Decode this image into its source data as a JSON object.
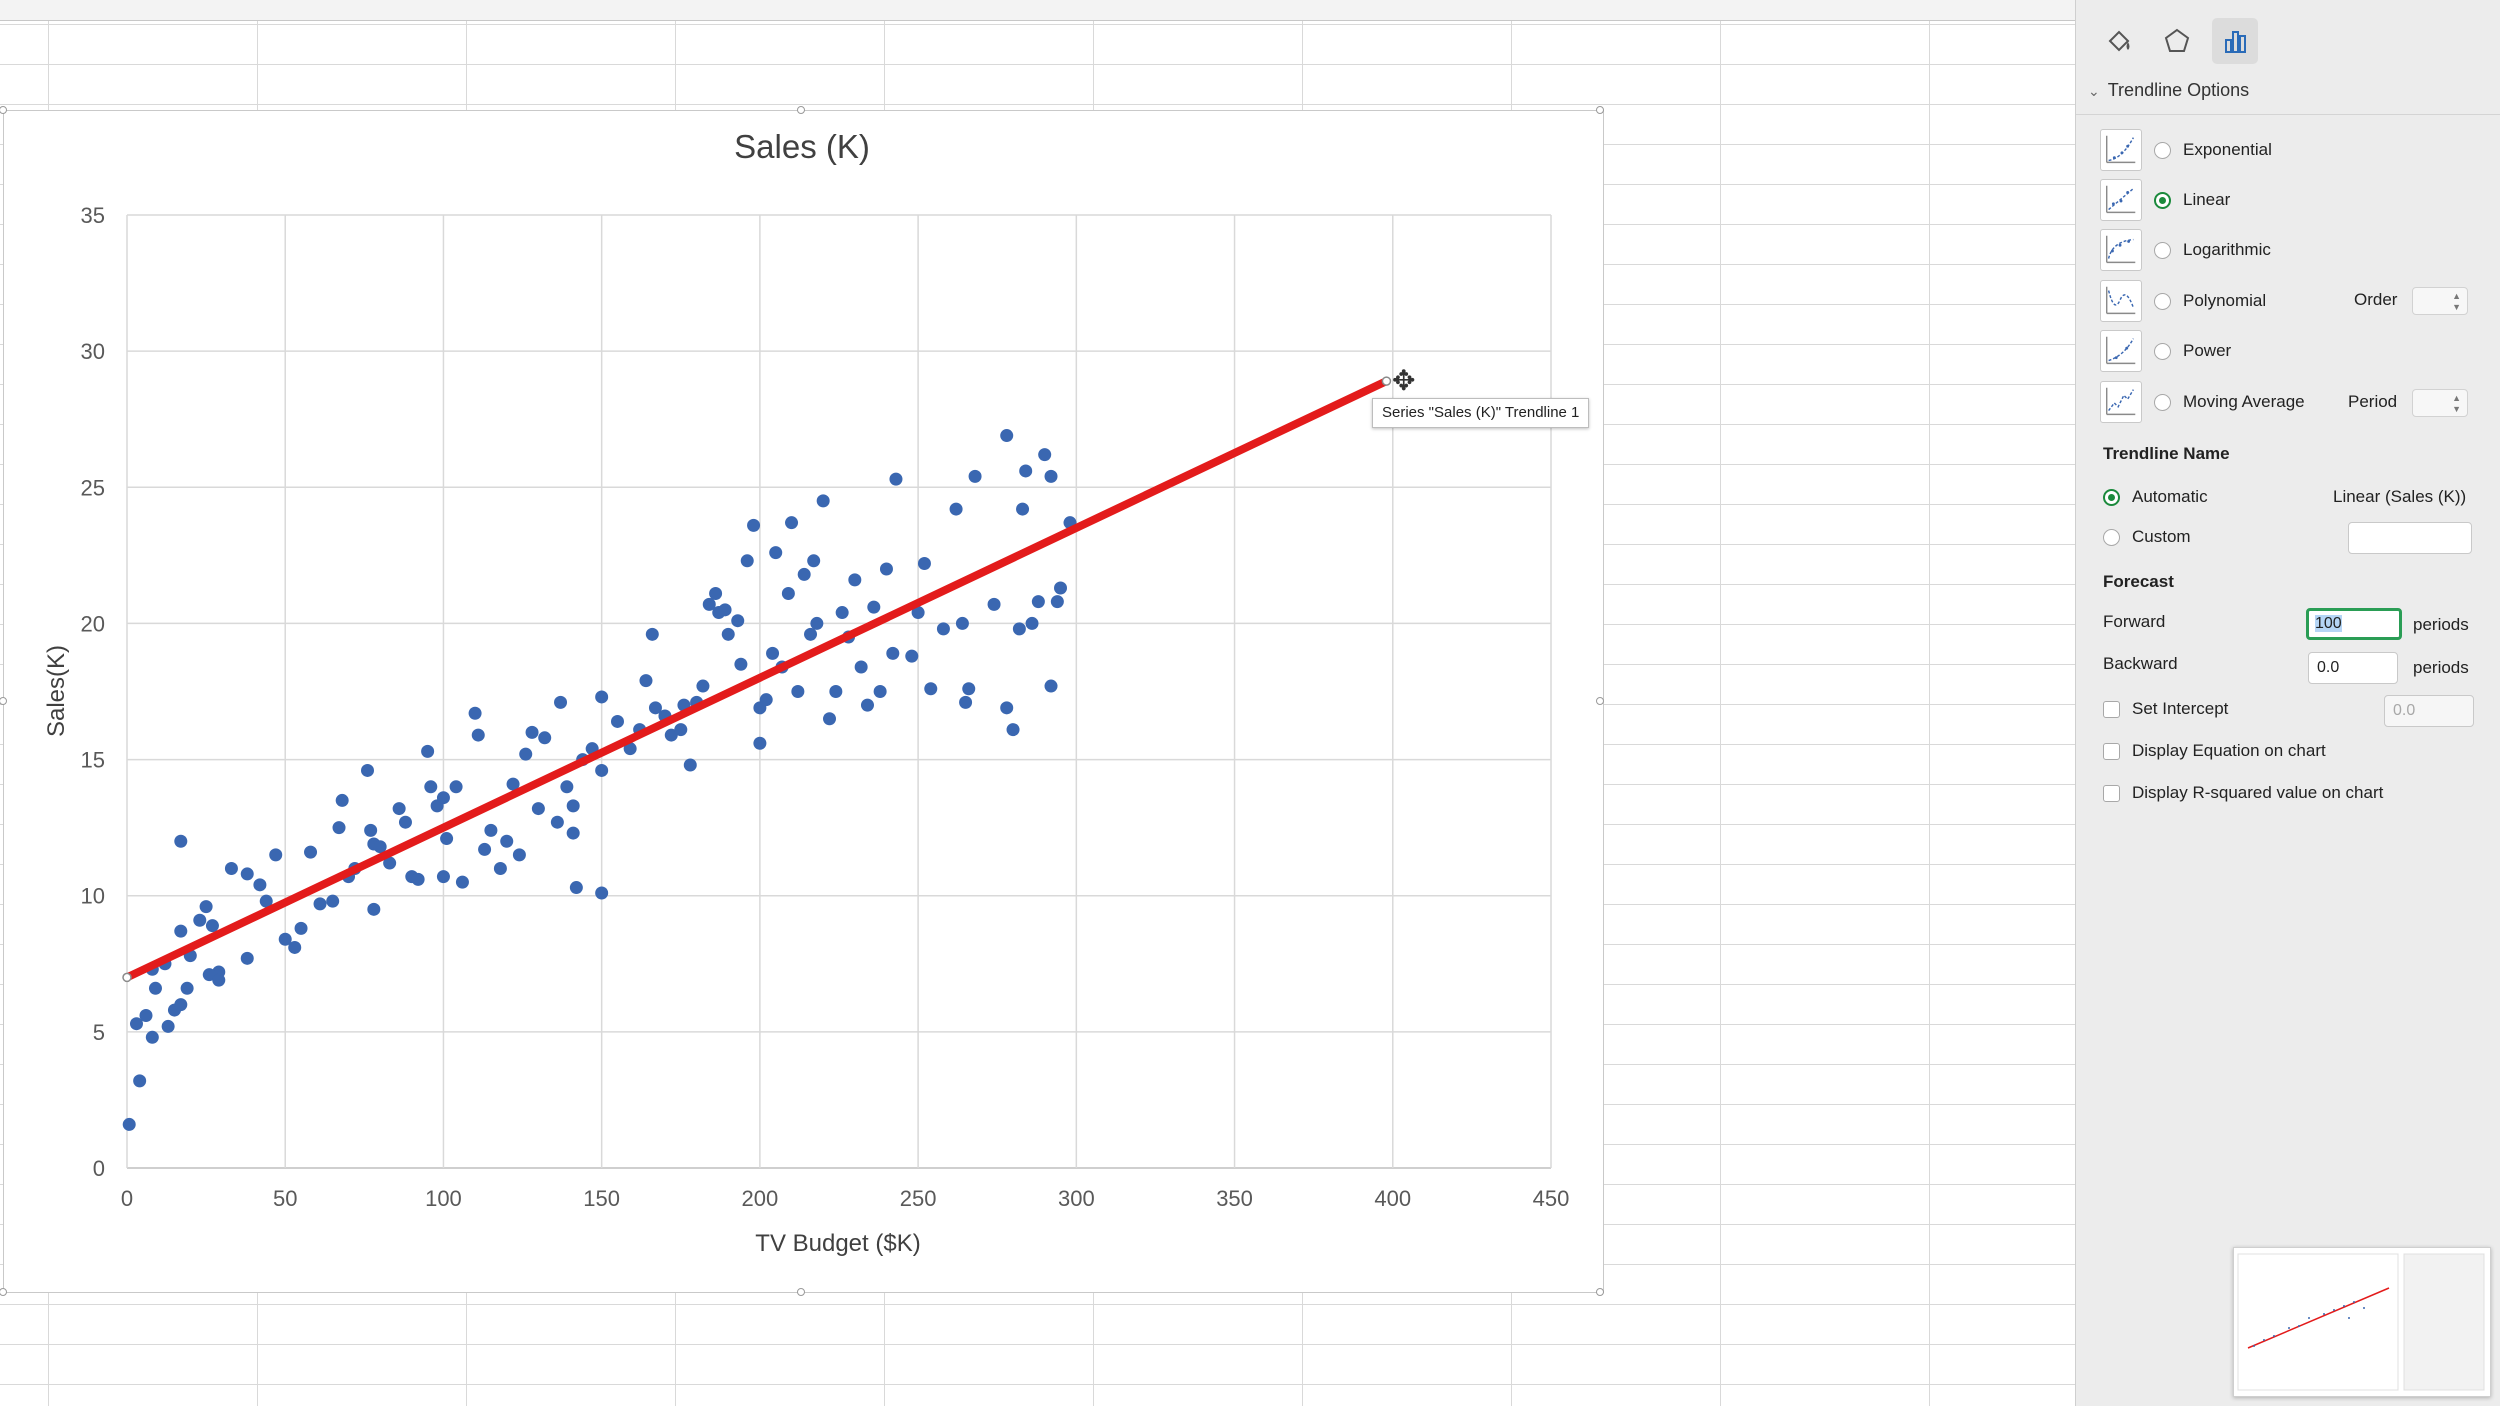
{
  "chart": {
    "title": "Sales (K)",
    "xlabel": "TV Budget ($K)",
    "ylabel": "Sales(K)",
    "tooltip": "Series \"Sales (K)\" Trendline 1"
  },
  "chart_data": {
    "type": "scatter",
    "title": "Sales (K)",
    "xlabel": "TV Budget ($K)",
    "ylabel": "Sales(K)",
    "xlim": [
      0,
      450
    ],
    "ylim": [
      0,
      35
    ],
    "xticks": [
      0,
      50,
      100,
      150,
      200,
      250,
      300,
      350,
      400,
      450
    ],
    "yticks": [
      0,
      5,
      10,
      15,
      20,
      25,
      30,
      35
    ],
    "grid": true,
    "legend": "none",
    "series": [
      {
        "name": "Sales (K)",
        "color": "#3a67b1",
        "points": [
          [
            0.7,
            1.6
          ],
          [
            4,
            3.2
          ],
          [
            3,
            5.3
          ],
          [
            6,
            5.6
          ],
          [
            8,
            4.8
          ],
          [
            9,
            6.6
          ],
          [
            13,
            5.2
          ],
          [
            15,
            5.8
          ],
          [
            17,
            6
          ],
          [
            19,
            6.6
          ],
          [
            8,
            7.3
          ],
          [
            12,
            7.5
          ],
          [
            17,
            8.7
          ],
          [
            20,
            7.8
          ],
          [
            23,
            9.1
          ],
          [
            25,
            9.6
          ],
          [
            27,
            8.9
          ],
          [
            29,
            7.2
          ],
          [
            26,
            7.1
          ],
          [
            29,
            6.9
          ],
          [
            17,
            12
          ],
          [
            33,
            11
          ],
          [
            38,
            10.8
          ],
          [
            38,
            7.7
          ],
          [
            42,
            10.4
          ],
          [
            44,
            9.8
          ],
          [
            47,
            11.5
          ],
          [
            50,
            8.4
          ],
          [
            53,
            8.1
          ],
          [
            55,
            8.8
          ],
          [
            58,
            11.6
          ],
          [
            61,
            9.7
          ],
          [
            65,
            9.8
          ],
          [
            67,
            12.5
          ],
          [
            68,
            13.5
          ],
          [
            70,
            10.7
          ],
          [
            72,
            11
          ],
          [
            76,
            14.6
          ],
          [
            77,
            12.4
          ],
          [
            78,
            11.9
          ],
          [
            80,
            11.8
          ],
          [
            78,
            9.5
          ],
          [
            83,
            11.2
          ],
          [
            86,
            13.2
          ],
          [
            88,
            12.7
          ],
          [
            90,
            10.7
          ],
          [
            92,
            10.6
          ],
          [
            95,
            15.3
          ],
          [
            96,
            14
          ],
          [
            98,
            13.3
          ],
          [
            100,
            13.6
          ],
          [
            101,
            12.1
          ],
          [
            104,
            14
          ],
          [
            100,
            10.7
          ],
          [
            106,
            10.5
          ],
          [
            110,
            16.7
          ],
          [
            111,
            15.9
          ],
          [
            113,
            11.7
          ],
          [
            115,
            12.4
          ],
          [
            118,
            11
          ],
          [
            120,
            12
          ],
          [
            122,
            14.1
          ],
          [
            124,
            11.5
          ],
          [
            126,
            15.2
          ],
          [
            128,
            16
          ],
          [
            130,
            13.2
          ],
          [
            132,
            15.8
          ],
          [
            136,
            12.7
          ],
          [
            137,
            17.1
          ],
          [
            139,
            14
          ],
          [
            141,
            13.3
          ],
          [
            142,
            10.3
          ],
          [
            144,
            15
          ],
          [
            147,
            15.4
          ],
          [
            141,
            12.3
          ],
          [
            150,
            14.6
          ],
          [
            150,
            10.1
          ],
          [
            150,
            17.3
          ],
          [
            155,
            16.4
          ],
          [
            159,
            15.4
          ],
          [
            162,
            16.1
          ],
          [
            164,
            17.9
          ],
          [
            166,
            19.6
          ],
          [
            167,
            16.9
          ],
          [
            170,
            16.6
          ],
          [
            172,
            15.9
          ],
          [
            175,
            16.1
          ],
          [
            176,
            17
          ],
          [
            178,
            14.8
          ],
          [
            180,
            17.1
          ],
          [
            182,
            17.7
          ],
          [
            184,
            20.7
          ],
          [
            186,
            21.1
          ],
          [
            187,
            20.4
          ],
          [
            189,
            20.5
          ],
          [
            190,
            19.6
          ],
          [
            193,
            20.1
          ],
          [
            194,
            18.5
          ],
          [
            196,
            22.3
          ],
          [
            198,
            23.6
          ],
          [
            200,
            15.6
          ],
          [
            200,
            16.9
          ],
          [
            202,
            17.2
          ],
          [
            204,
            18.9
          ],
          [
            205,
            22.6
          ],
          [
            207,
            18.4
          ],
          [
            209,
            21.1
          ],
          [
            210,
            23.7
          ],
          [
            212,
            17.5
          ],
          [
            214,
            21.8
          ],
          [
            216,
            19.6
          ],
          [
            217,
            22.3
          ],
          [
            218,
            20
          ],
          [
            220,
            24.5
          ],
          [
            222,
            16.5
          ],
          [
            224,
            17.5
          ],
          [
            226,
            20.4
          ],
          [
            228,
            19.5
          ],
          [
            230,
            21.6
          ],
          [
            232,
            18.4
          ],
          [
            234,
            17
          ],
          [
            236,
            20.6
          ],
          [
            238,
            17.5
          ],
          [
            240,
            22
          ],
          [
            242,
            18.9
          ],
          [
            243,
            25.3
          ],
          [
            248,
            18.8
          ],
          [
            250,
            20.4
          ],
          [
            252,
            22.2
          ],
          [
            254,
            17.6
          ],
          [
            258,
            19.8
          ],
          [
            262,
            24.2
          ],
          [
            264,
            20
          ],
          [
            265,
            17.1
          ],
          [
            266,
            17.6
          ],
          [
            268,
            25.4
          ],
          [
            274,
            20.7
          ],
          [
            278,
            16.9
          ],
          [
            278,
            26.9
          ],
          [
            280,
            16.1
          ],
          [
            282,
            19.8
          ],
          [
            283,
            24.2
          ],
          [
            284,
            25.6
          ],
          [
            286,
            20
          ],
          [
            288,
            20.8
          ],
          [
            290,
            26.2
          ],
          [
            292,
            17.7
          ],
          [
            292,
            25.4
          ],
          [
            294,
            20.8
          ],
          [
            295,
            21.3
          ],
          [
            298,
            23.7
          ]
        ]
      }
    ],
    "trendline": {
      "name": "Linear (Sales (K))",
      "type": "linear",
      "color": "#e31b1b",
      "x": [
        0,
        398
      ],
      "y": [
        7.0,
        28.9
      ]
    }
  },
  "pane": {
    "section_title": "Trendline Options",
    "options": [
      {
        "label": "Exponential",
        "checked": false
      },
      {
        "label": "Linear",
        "checked": true
      },
      {
        "label": "Logarithmic",
        "checked": false
      },
      {
        "label": "Polynomial",
        "checked": false,
        "extra_label": "Order"
      },
      {
        "label": "Power",
        "checked": false
      },
      {
        "label": "Moving Average",
        "checked": false,
        "extra_label": "Period"
      }
    ],
    "trendline_name": {
      "heading": "Trendline Name",
      "automatic_label": "Automatic",
      "automatic_value": "Linear (Sales (K))",
      "custom_label": "Custom",
      "custom_value": ""
    },
    "forecast": {
      "heading": "Forecast",
      "forward_label": "Forward",
      "forward_value": "100",
      "backward_label": "Backward",
      "backward_value": "0.0",
      "unit": "periods"
    },
    "set_intercept_label": "Set Intercept",
    "set_intercept_value": "0.0",
    "display_equation_label": "Display Equation on chart",
    "display_r2_label": "Display R-squared value on chart"
  }
}
